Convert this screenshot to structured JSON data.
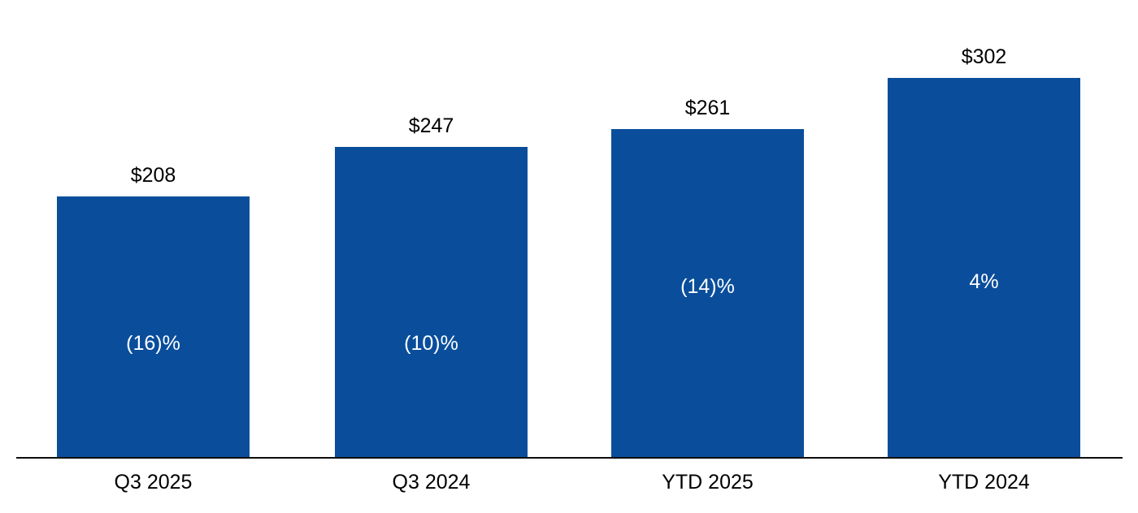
{
  "chart_data": {
    "type": "bar",
    "title": "",
    "xlabel": "",
    "ylabel": "",
    "categories": [
      "Q3 2025",
      "Q3 2024",
      "YTD 2025",
      "YTD 2024"
    ],
    "values": [
      208,
      247,
      261,
      302
    ],
    "value_labels": [
      "$208",
      "$247",
      "$261",
      "$302"
    ],
    "inside_labels": [
      "(16)%",
      "(10)%",
      "(14)%",
      "4%"
    ],
    "ylim": [
      0,
      364
    ],
    "grid": false,
    "legend": false,
    "bar_color": "#0a4e9b",
    "inside_label_color": "#ffffff",
    "outside_label_color": "#000000",
    "axis_line_color": "#0d0d0d",
    "bars": [
      {
        "category": "Q3 2025",
        "value": 208,
        "value_label": "$208",
        "change_label": "(16)%"
      },
      {
        "category": "Q3 2024",
        "value": 247,
        "value_label": "$247",
        "change_label": "(10)%"
      },
      {
        "category": "YTD 2025",
        "value": 261,
        "value_label": "$261",
        "change_label": "(14)%"
      },
      {
        "category": "YTD 2024",
        "value": 302,
        "value_label": "$302",
        "change_label": "4%"
      }
    ]
  }
}
